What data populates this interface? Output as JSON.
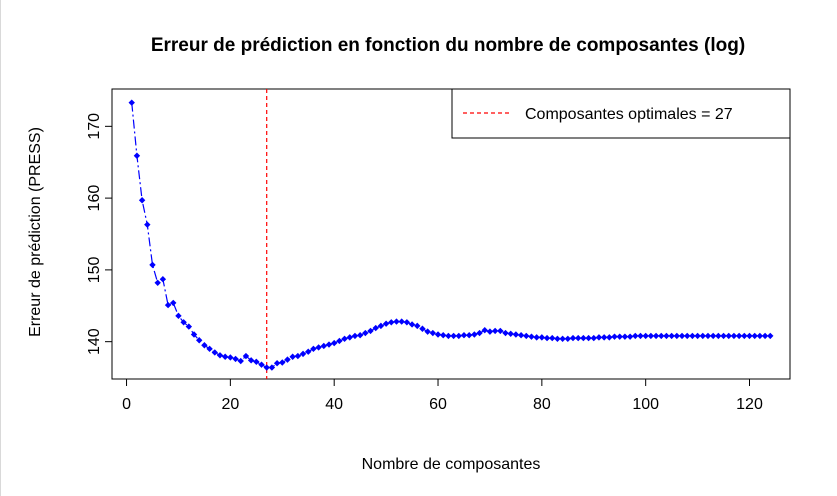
{
  "chart_data": {
    "type": "line",
    "title": "Erreur de prédiction en fonction du nombre de composantes (log)",
    "xlabel": "Nombre de composantes",
    "ylabel": "Erreur de prédiction (PRESS)",
    "xlim": [
      -2.8,
      127.8
    ],
    "ylim": [
      134.8,
      175.2
    ],
    "xticks": [
      0,
      20,
      40,
      60,
      80,
      100,
      120
    ],
    "yticks": [
      140,
      150,
      160,
      170
    ],
    "grid": false,
    "legend_position": "top-right",
    "series": [
      {
        "name": "",
        "color": "#0000ff",
        "line_style": "dashdot",
        "marker": "diamond",
        "x": [
          1,
          2,
          3,
          4,
          5,
          6,
          7,
          8,
          9,
          10,
          11,
          12,
          13,
          14,
          15,
          16,
          17,
          18,
          19,
          20,
          21,
          22,
          23,
          24,
          25,
          26,
          27,
          28,
          29,
          30,
          31,
          32,
          33,
          34,
          35,
          36,
          37,
          38,
          39,
          40,
          41,
          42,
          43,
          44,
          45,
          46,
          47,
          48,
          49,
          50,
          51,
          52,
          53,
          54,
          55,
          56,
          57,
          58,
          59,
          60,
          61,
          62,
          63,
          64,
          65,
          66,
          67,
          68,
          69,
          70,
          71,
          72,
          73,
          74,
          75,
          76,
          77,
          78,
          79,
          80,
          81,
          82,
          83,
          84,
          85,
          86,
          87,
          88,
          89,
          90,
          91,
          92,
          93,
          94,
          95,
          96,
          97,
          98,
          99,
          100,
          101,
          102,
          103,
          104,
          105,
          106,
          107,
          108,
          109,
          110,
          111,
          112,
          113,
          114,
          115,
          116,
          117,
          118,
          119,
          120,
          121,
          122,
          123,
          124
        ],
        "y": [
          173.3,
          165.9,
          159.7,
          156.3,
          150.7,
          148.2,
          148.7,
          145.1,
          145.4,
          143.6,
          142.7,
          142.1,
          141.0,
          140.2,
          139.5,
          139.0,
          138.5,
          138.1,
          137.9,
          137.8,
          137.6,
          137.3,
          138.0,
          137.4,
          137.2,
          136.8,
          136.4,
          136.4,
          137.0,
          137.1,
          137.5,
          137.9,
          138.0,
          138.3,
          138.6,
          139.0,
          139.2,
          139.4,
          139.6,
          139.8,
          140.1,
          140.4,
          140.6,
          140.8,
          140.9,
          141.2,
          141.5,
          141.9,
          142.2,
          142.5,
          142.7,
          142.8,
          142.8,
          142.7,
          142.4,
          142.2,
          141.8,
          141.4,
          141.2,
          141.0,
          140.9,
          140.8,
          140.8,
          140.8,
          140.9,
          140.9,
          141.0,
          141.2,
          141.6,
          141.4,
          141.5,
          141.5,
          141.2,
          141.1,
          141.0,
          140.9,
          140.8,
          140.7,
          140.6,
          140.6,
          140.5,
          140.5,
          140.4,
          140.4,
          140.4,
          140.5,
          140.5,
          140.5,
          140.5,
          140.5,
          140.6,
          140.6,
          140.6,
          140.7,
          140.7,
          140.7,
          140.7,
          140.8,
          140.8,
          140.8,
          140.8,
          140.8,
          140.8,
          140.8,
          140.8,
          140.8,
          140.8,
          140.8,
          140.8,
          140.8,
          140.8,
          140.8,
          140.8,
          140.8,
          140.8,
          140.8,
          140.8,
          140.8,
          140.8,
          140.8,
          140.8,
          140.8,
          140.8,
          140.8
        ]
      }
    ],
    "vline": {
      "x": 27,
      "color": "#ff0000",
      "line_style": "dashed"
    },
    "legend": [
      {
        "label": "Composantes optimales = 27",
        "color": "#ff0000",
        "line_style": "dashed"
      }
    ]
  }
}
